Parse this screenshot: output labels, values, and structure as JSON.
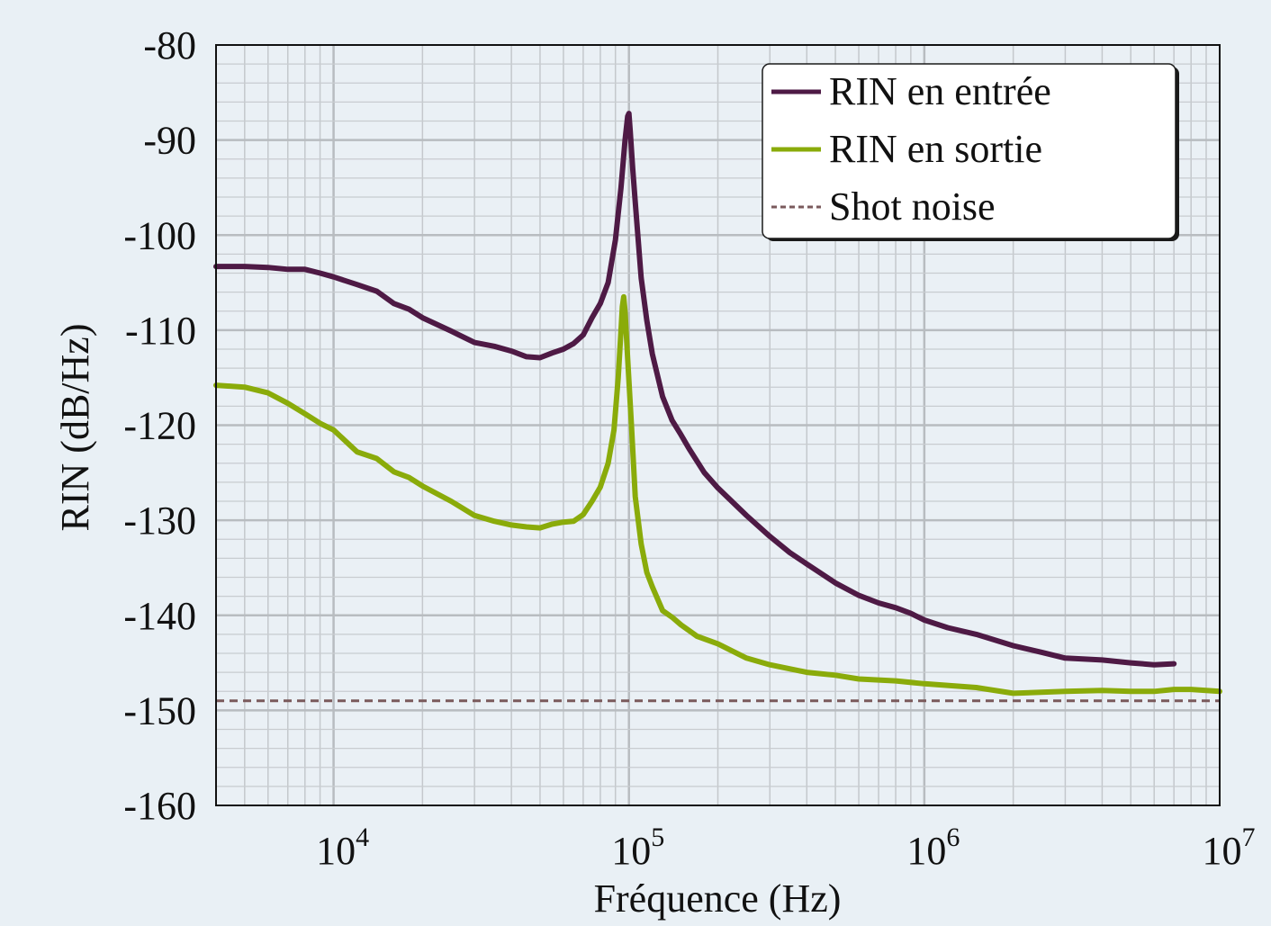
{
  "chart_data": {
    "type": "line",
    "title": "",
    "xlabel": "Fréquence (Hz)",
    "ylabel": "RIN (dB/Hz)",
    "xscale": "log",
    "xlim": [
      4000,
      10000000
    ],
    "ylim": [
      -160,
      -80
    ],
    "grid": true,
    "legend_position": "top-right",
    "x_tick_labels": [
      {
        "value": 10000,
        "base": "10",
        "exp": "4"
      },
      {
        "value": 100000,
        "base": "10",
        "exp": "5"
      },
      {
        "value": 1000000,
        "base": "10",
        "exp": "6"
      },
      {
        "value": 10000000,
        "base": "10",
        "exp": "7"
      }
    ],
    "y_tick_labels": [
      "-80",
      "-90",
      "-100",
      "-110",
      "-120",
      "-130",
      "-140",
      "-150",
      "-160"
    ],
    "series": [
      {
        "name": "RIN en entrée",
        "color": "#4e1a45",
        "style": "solid",
        "x": [
          4000,
          5000,
          6000,
          7000,
          8000,
          9000,
          10000,
          12000,
          14000,
          16000,
          18000,
          20000,
          25000,
          30000,
          35000,
          40000,
          45000,
          50000,
          55000,
          60000,
          65000,
          70000,
          75000,
          80000,
          85000,
          90000,
          94000,
          97000,
          99000,
          100000,
          101000,
          103000,
          105000,
          110000,
          115000,
          120000,
          130000,
          140000,
          150000,
          160000,
          180000,
          200000,
          250000,
          300000,
          350000,
          400000,
          500000,
          600000,
          700000,
          800000,
          900000,
          1000000,
          1200000,
          1500000,
          2000000,
          2500000,
          3000000,
          4000000,
          5000000,
          6000000,
          7000000
        ],
        "y": [
          -103.3,
          -103.3,
          -103.4,
          -103.6,
          -103.6,
          -104,
          -104.4,
          -105.2,
          -105.9,
          -107.2,
          -107.8,
          -108.7,
          -110.1,
          -111.3,
          -111.7,
          -112.2,
          -112.8,
          -112.9,
          -112.4,
          -112,
          -111.4,
          -110.5,
          -108.7,
          -107.2,
          -105,
          -100.5,
          -95,
          -90,
          -87.5,
          -87.2,
          -89,
          -93,
          -96.5,
          -104.5,
          -109,
          -112.5,
          -117,
          -119.5,
          -121,
          -122.5,
          -125,
          -126.6,
          -129.5,
          -131.7,
          -133.4,
          -134.6,
          -136.6,
          -137.9,
          -138.7,
          -139.2,
          -139.8,
          -140.5,
          -141.3,
          -142,
          -143.2,
          -143.9,
          -144.5,
          -144.7,
          -145,
          -145.2,
          -145.1
        ]
      },
      {
        "name": "RIN en sortie",
        "color": "#8aab0a",
        "style": "solid",
        "x": [
          4000,
          5000,
          6000,
          7000,
          8000,
          9000,
          10000,
          12000,
          14000,
          16000,
          18000,
          20000,
          25000,
          30000,
          35000,
          40000,
          45000,
          50000,
          55000,
          60000,
          65000,
          70000,
          75000,
          80000,
          85000,
          89000,
          92000,
          94000,
          95000,
          96000,
          97000,
          99000,
          102000,
          105000,
          110000,
          115000,
          120000,
          130000,
          140000,
          150000,
          170000,
          200000,
          250000,
          300000,
          400000,
          500000,
          600000,
          800000,
          1000000,
          1500000,
          2000000,
          3000000,
          4000000,
          5000000,
          6000000,
          7000000,
          8000000,
          10000000
        ],
        "y": [
          -115.8,
          -116,
          -116.6,
          -117.7,
          -118.8,
          -119.8,
          -120.5,
          -122.8,
          -123.5,
          -124.9,
          -125.5,
          -126.4,
          -128,
          -129.5,
          -130.1,
          -130.5,
          -130.7,
          -130.8,
          -130.4,
          -130.2,
          -130.1,
          -129.4,
          -128,
          -126.5,
          -124,
          -120.5,
          -115,
          -110,
          -107.5,
          -106.5,
          -108,
          -113,
          -120,
          -127.5,
          -132.5,
          -135.5,
          -137,
          -139.5,
          -140.2,
          -141,
          -142.2,
          -143,
          -144.5,
          -145.2,
          -146,
          -146.3,
          -146.7,
          -146.9,
          -147.2,
          -147.6,
          -148.2,
          -148,
          -147.9,
          -148,
          -148,
          -147.8,
          -147.8,
          -148
        ]
      },
      {
        "name": "Shot noise",
        "color": "#7a5a5c",
        "style": "dashed",
        "x": [
          4000,
          10000000
        ],
        "y": [
          -149,
          -149
        ]
      }
    ]
  }
}
